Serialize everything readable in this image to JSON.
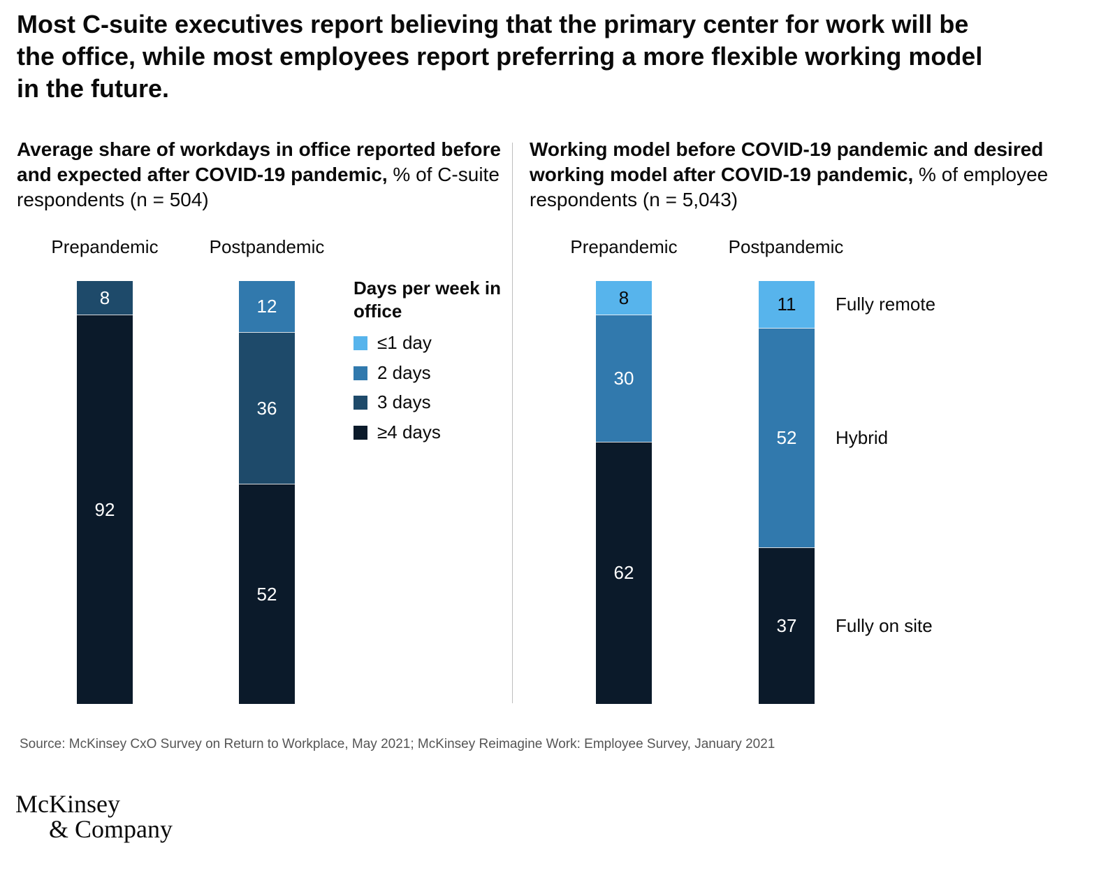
{
  "headline": "Most C-suite executives report believing that the primary center for work will be the office, while most employees report preferring a more flexible working model in the future.",
  "colors": {
    "le1": "#57b4ec",
    "d2": "#3179ad",
    "d3": "#1e4a6a",
    "ge4": "#0b1a2a",
    "divider": "#bdbdbd"
  },
  "chart_data": [
    {
      "type": "bar",
      "stacked": true,
      "title_bold": "Average share of workdays in office reported before and expected after COVID-19 pandemic,",
      "title_rest": " % of C-suite respondents (n = 504)",
      "categories": [
        "Prepandemic",
        "Postpandemic"
      ],
      "legend_title": "Days per week in office",
      "series": [
        {
          "name": "≤1 day",
          "color": "#57b4ec",
          "values": [
            0,
            0
          ]
        },
        {
          "name": "2 days",
          "color": "#3179ad",
          "values": [
            0,
            12
          ]
        },
        {
          "name": "3 days",
          "color": "#1e4a6a",
          "values": [
            8,
            36
          ]
        },
        {
          "name": "≥4 days",
          "color": "#0b1a2a",
          "values": [
            92,
            52
          ]
        }
      ]
    },
    {
      "type": "bar",
      "stacked": true,
      "title_bold": "Working model before COVID-19 pandemic and desired working model after COVID-19 pandemic,",
      "title_rest": " % of employee respondents (n = 5,043)",
      "categories": [
        "Prepandemic",
        "Postpandemic"
      ],
      "series": [
        {
          "name": "Fully remote",
          "color": "#57b4ec",
          "values": [
            8,
            11
          ]
        },
        {
          "name": "Hybrid",
          "color": "#3179ad",
          "values": [
            30,
            52
          ]
        },
        {
          "name": "Fully on site",
          "color": "#0b1a2a",
          "values": [
            62,
            37
          ]
        }
      ]
    }
  ],
  "source": "Source: McKinsey CxO Survey on Return to Workplace, May 2021; McKinsey Reimagine Work: Employee Survey, January 2021",
  "logo": {
    "line1": "McKinsey",
    "line2": "& Company"
  }
}
